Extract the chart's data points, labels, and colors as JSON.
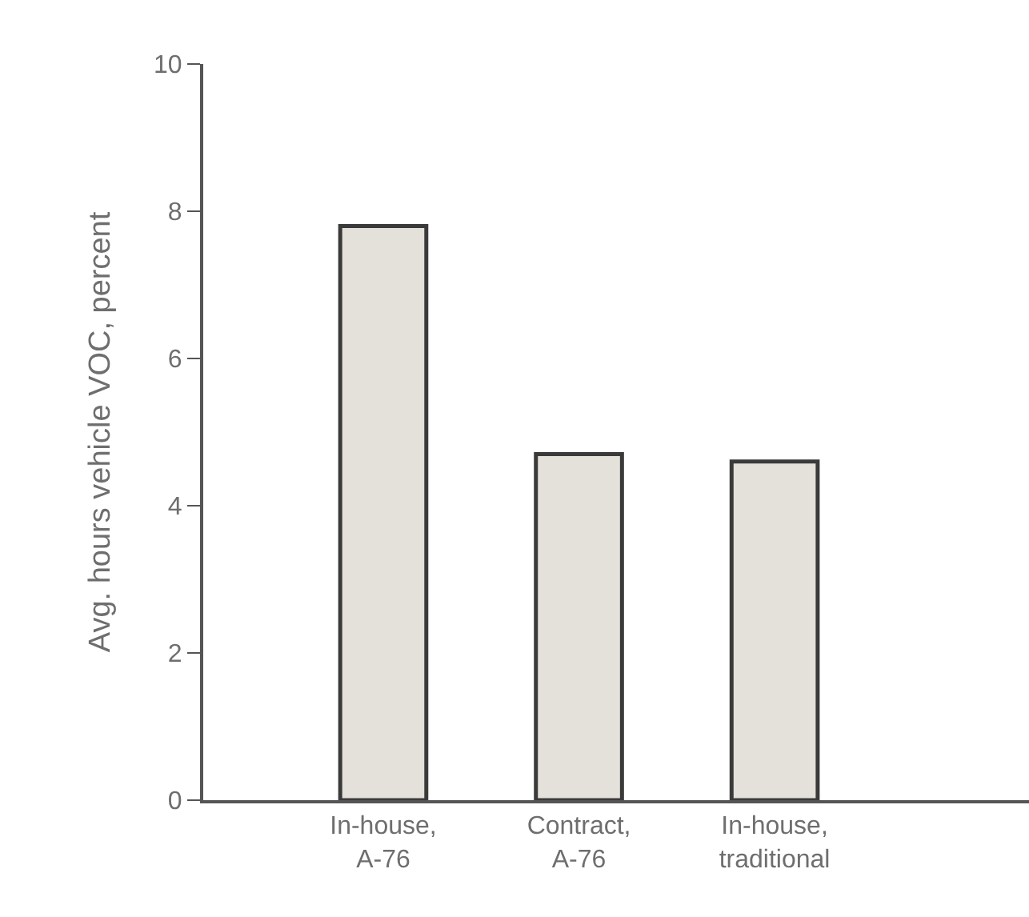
{
  "chart_data": {
    "type": "bar",
    "ylabel": "Avg. hours vehicle VOC, percent",
    "categories": [
      "In-house,\nA-76",
      "Contract,\nA-76",
      "In-house,\ntraditional"
    ],
    "values": [
      7.8,
      4.7,
      4.6
    ],
    "color": "#e4e0da",
    "ylim": [
      0,
      10
    ],
    "yticks": [
      0,
      2,
      4,
      6,
      8,
      10
    ]
  }
}
